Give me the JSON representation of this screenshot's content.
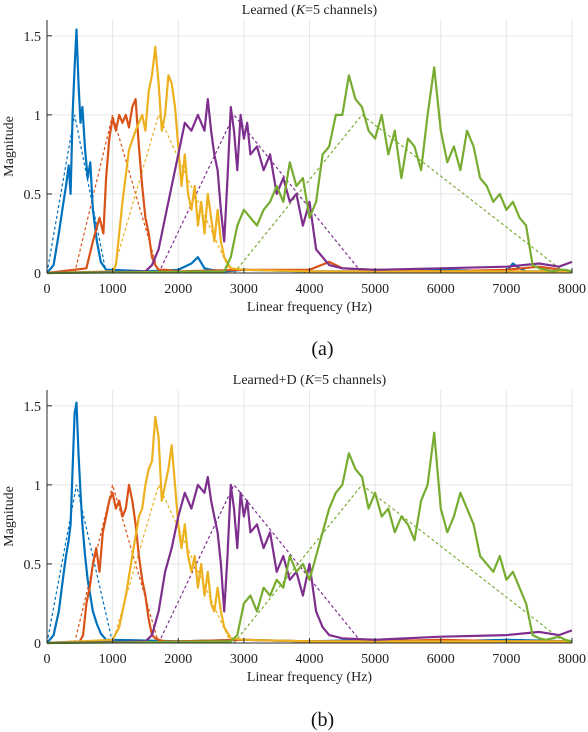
{
  "colors": {
    "ch1": "#0072BD",
    "ch2": "#D95319",
    "ch3": "#EDB120",
    "ch4": "#7E2F8E",
    "ch5": "#77AC30",
    "grid": "#e6e6e6",
    "axis": "#262626"
  },
  "chart_data": [
    {
      "type": "line",
      "title_main": "Learned (",
      "title_k": "K",
      "title_rest": "=5 channels)",
      "caption": "(a)",
      "xlabel": "Linear frequency (Hz)",
      "ylabel": "Magnitude",
      "xlim": [
        0,
        8000
      ],
      "ylim": [
        0,
        1.6
      ],
      "xticks": [
        "0",
        "1000",
        "2000",
        "3000",
        "4000",
        "5000",
        "6000",
        "7000",
        "8000"
      ],
      "yticks": [
        "0",
        "0.5",
        "1",
        "1.5"
      ],
      "grid": true,
      "triangle_filters": [
        {
          "channel": 1,
          "x": [
            0,
            420,
            900
          ],
          "y": [
            0,
            1,
            0
          ]
        },
        {
          "channel": 2,
          "x": [
            420,
            1000,
            1700
          ],
          "y": [
            0,
            1,
            0
          ]
        },
        {
          "channel": 3,
          "x": [
            1000,
            1700,
            2800
          ],
          "y": [
            0,
            1,
            0
          ]
        },
        {
          "channel": 4,
          "x": [
            1700,
            2850,
            4800
          ],
          "y": [
            0,
            1,
            0
          ]
        },
        {
          "channel": 5,
          "x": [
            2850,
            4800,
            7900
          ],
          "y": [
            0,
            1,
            0
          ]
        }
      ],
      "series": [
        {
          "channel": 1,
          "x": [
            0,
            100,
            180,
            240,
            290,
            330,
            360,
            390,
            420,
            450,
            480,
            510,
            540,
            580,
            620,
            660,
            700,
            760,
            820,
            900,
            1000,
            1500,
            2000,
            2200,
            2300,
            2400,
            2500,
            2700,
            3000,
            4000,
            5000,
            6000,
            7000,
            7100,
            7200,
            7300,
            8000
          ],
          "y": [
            0,
            0.05,
            0.25,
            0.42,
            0.55,
            0.68,
            0.5,
            1.0,
            1.3,
            1.54,
            1.2,
            0.95,
            1.05,
            0.78,
            0.6,
            0.7,
            0.4,
            0.2,
            0.07,
            0.02,
            0.02,
            0.01,
            0.02,
            0.06,
            0.1,
            0.03,
            0.02,
            0.01,
            0.02,
            0.01,
            0.01,
            0.02,
            0.01,
            0.06,
            0.03,
            0.01,
            0.01
          ]
        },
        {
          "channel": 2,
          "x": [
            0,
            600,
            700,
            800,
            860,
            900,
            950,
            1000,
            1050,
            1100,
            1150,
            1200,
            1250,
            1300,
            1350,
            1400,
            1450,
            1500,
            1550,
            1600,
            1650,
            1700,
            1800,
            2000,
            3000,
            4000,
            4300,
            4500,
            5000,
            6000,
            7000,
            7500,
            8000
          ],
          "y": [
            0,
            0.03,
            0.2,
            0.35,
            0.25,
            0.6,
            0.85,
            0.98,
            0.9,
            1.0,
            0.95,
            1.0,
            0.92,
            1.05,
            1.1,
            0.8,
            0.55,
            0.35,
            0.25,
            0.1,
            0.05,
            0.02,
            0.02,
            0.01,
            0.02,
            0.02,
            0.07,
            0.03,
            0.02,
            0.01,
            0.02,
            0.04,
            0.01
          ]
        },
        {
          "channel": 3,
          "x": [
            0,
            1000,
            1050,
            1150,
            1250,
            1350,
            1450,
            1500,
            1550,
            1600,
            1650,
            1700,
            1750,
            1800,
            1850,
            1900,
            1950,
            2000,
            2050,
            2100,
            2150,
            2200,
            2250,
            2300,
            2350,
            2400,
            2450,
            2500,
            2550,
            2600,
            2650,
            2700,
            2800,
            3000,
            4000,
            8000
          ],
          "y": [
            0,
            0.01,
            0.05,
            0.45,
            0.78,
            0.9,
            1.0,
            0.9,
            1.15,
            1.25,
            1.43,
            1.2,
            0.9,
            1.0,
            1.25,
            1.2,
            1.05,
            0.8,
            0.55,
            0.75,
            0.5,
            0.4,
            0.55,
            0.3,
            0.45,
            0.25,
            0.5,
            0.35,
            0.2,
            0.4,
            0.2,
            0.1,
            0.03,
            0.02,
            0.01,
            0.01
          ]
        },
        {
          "channel": 4,
          "x": [
            0,
            1500,
            1600,
            1700,
            1800,
            1900,
            2000,
            2100,
            2200,
            2300,
            2400,
            2450,
            2500,
            2550,
            2600,
            2650,
            2700,
            2750,
            2800,
            2850,
            2900,
            2950,
            3000,
            3050,
            3100,
            3200,
            3300,
            3400,
            3500,
            3600,
            3700,
            3800,
            3900,
            4000,
            4100,
            4200,
            4300,
            4500,
            5000,
            6000,
            7000,
            7500,
            7800,
            8000
          ],
          "y": [
            0,
            0.01,
            0.05,
            0.15,
            0.35,
            0.55,
            0.75,
            0.95,
            0.9,
            1.0,
            0.9,
            1.1,
            0.9,
            0.75,
            0.65,
            0.4,
            0.2,
            0.6,
            1.05,
            0.9,
            0.65,
            1.0,
            0.85,
            0.95,
            0.75,
            0.8,
            0.65,
            0.75,
            0.5,
            0.6,
            0.45,
            0.5,
            0.3,
            0.45,
            0.15,
            0.1,
            0.05,
            0.03,
            0.02,
            0.03,
            0.04,
            0.06,
            0.04,
            0.07
          ]
        },
        {
          "channel": 5,
          "x": [
            0,
            2700,
            2800,
            2900,
            3000,
            3100,
            3200,
            3300,
            3400,
            3500,
            3600,
            3700,
            3800,
            3900,
            4000,
            4100,
            4200,
            4300,
            4400,
            4500,
            4600,
            4700,
            4800,
            4900,
            5000,
            5100,
            5200,
            5300,
            5400,
            5500,
            5600,
            5700,
            5800,
            5900,
            6000,
            6100,
            6200,
            6300,
            6400,
            6500,
            6600,
            6700,
            6800,
            6900,
            7000,
            7100,
            7200,
            7300,
            7400,
            7500,
            7600,
            7700,
            7800,
            7900,
            8000
          ],
          "y": [
            0,
            0.01,
            0.1,
            0.3,
            0.4,
            0.35,
            0.3,
            0.4,
            0.45,
            0.55,
            0.45,
            0.7,
            0.55,
            0.6,
            0.35,
            0.45,
            0.75,
            0.8,
            1.0,
            1.0,
            1.25,
            1.1,
            1.05,
            0.9,
            0.85,
            1.0,
            0.75,
            0.9,
            0.6,
            0.85,
            0.8,
            0.65,
            1.0,
            1.3,
            0.9,
            0.7,
            0.8,
            0.65,
            0.9,
            0.8,
            0.6,
            0.55,
            0.45,
            0.5,
            0.4,
            0.45,
            0.35,
            0.3,
            0.05,
            0.03,
            0.02,
            0.01,
            0.02,
            0.02,
            0.01
          ]
        }
      ]
    },
    {
      "type": "line",
      "title_main": "Learned+D (",
      "title_k": "K",
      "title_rest": "=5 channels)",
      "caption": "(b)",
      "xlabel": "Linear frequency (Hz)",
      "ylabel": "Magnitude",
      "xlim": [
        0,
        8000
      ],
      "ylim": [
        0,
        1.6
      ],
      "xticks": [
        "0",
        "1000",
        "2000",
        "3000",
        "4000",
        "5000",
        "6000",
        "7000",
        "8000"
      ],
      "yticks": [
        "0",
        "0.5",
        "1",
        "1.5"
      ],
      "grid": true,
      "triangle_filters": [
        {
          "channel": 1,
          "x": [
            0,
            450,
            1000
          ],
          "y": [
            0,
            1,
            0
          ]
        },
        {
          "channel": 2,
          "x": [
            420,
            1000,
            1700
          ],
          "y": [
            0,
            1,
            0
          ]
        },
        {
          "channel": 3,
          "x": [
            1000,
            1700,
            2800
          ],
          "y": [
            0,
            1,
            0
          ]
        },
        {
          "channel": 4,
          "x": [
            1700,
            2850,
            4800
          ],
          "y": [
            0,
            1,
            0
          ]
        },
        {
          "channel": 5,
          "x": [
            2850,
            4800,
            7900
          ],
          "y": [
            0,
            1,
            0
          ]
        }
      ],
      "series": [
        {
          "channel": 1,
          "x": [
            0,
            100,
            180,
            240,
            290,
            330,
            360,
            390,
            420,
            450,
            480,
            510,
            540,
            580,
            620,
            660,
            700,
            760,
            820,
            900,
            1000,
            2000,
            3000,
            4000,
            5000,
            6000,
            7000,
            8000
          ],
          "y": [
            0,
            0.05,
            0.2,
            0.4,
            0.55,
            0.65,
            0.75,
            1.1,
            1.45,
            1.52,
            1.2,
            0.95,
            0.75,
            0.55,
            0.4,
            0.3,
            0.2,
            0.12,
            0.06,
            0.02,
            0.02,
            0.01,
            0.02,
            0.01,
            0.02,
            0.01,
            0.02,
            0.01
          ]
        },
        {
          "channel": 2,
          "x": [
            0,
            500,
            550,
            600,
            650,
            700,
            750,
            800,
            850,
            900,
            950,
            1000,
            1050,
            1100,
            1150,
            1200,
            1250,
            1300,
            1350,
            1400,
            1450,
            1500,
            1550,
            1600,
            1650,
            1700,
            1800,
            2000,
            3000,
            4000,
            5000,
            6000,
            7000,
            8000
          ],
          "y": [
            0,
            0.01,
            0.05,
            0.25,
            0.35,
            0.5,
            0.6,
            0.45,
            0.7,
            0.8,
            0.9,
            0.95,
            0.85,
            0.9,
            0.8,
            0.85,
            1.0,
            0.9,
            0.75,
            0.55,
            0.4,
            0.3,
            0.15,
            0.05,
            0.03,
            0.02,
            0.01,
            0.01,
            0.02,
            0.01,
            0.01,
            0.02,
            0.01,
            0.01
          ]
        },
        {
          "channel": 3,
          "x": [
            0,
            1000,
            1100,
            1200,
            1300,
            1400,
            1450,
            1500,
            1550,
            1600,
            1650,
            1700,
            1750,
            1800,
            1850,
            1900,
            1950,
            2000,
            2050,
            2100,
            2150,
            2200,
            2250,
            2300,
            2350,
            2400,
            2450,
            2500,
            2550,
            2600,
            2650,
            2700,
            2800,
            3000,
            4000,
            8000
          ],
          "y": [
            0,
            0.02,
            0.1,
            0.3,
            0.55,
            0.8,
            0.85,
            1.0,
            1.1,
            1.15,
            1.43,
            1.3,
            0.9,
            1.0,
            1.1,
            1.25,
            1.0,
            0.75,
            0.6,
            0.75,
            0.55,
            0.45,
            0.55,
            0.35,
            0.5,
            0.3,
            0.45,
            0.25,
            0.2,
            0.35,
            0.2,
            0.1,
            0.03,
            0.02,
            0.01,
            0.01
          ]
        },
        {
          "channel": 4,
          "x": [
            0,
            1500,
            1600,
            1700,
            1800,
            1900,
            2000,
            2100,
            2200,
            2300,
            2400,
            2450,
            2500,
            2550,
            2600,
            2650,
            2700,
            2750,
            2800,
            2850,
            2900,
            2950,
            3000,
            3050,
            3100,
            3200,
            3300,
            3400,
            3500,
            3600,
            3700,
            3800,
            3900,
            4000,
            4100,
            4200,
            4300,
            4500,
            5000,
            6000,
            7000,
            7500,
            7800,
            8000
          ],
          "y": [
            0,
            0.01,
            0.05,
            0.2,
            0.45,
            0.6,
            0.8,
            0.95,
            0.85,
            1.0,
            0.95,
            1.05,
            0.9,
            0.8,
            0.7,
            0.5,
            0.2,
            0.55,
            1.0,
            0.85,
            0.6,
            0.95,
            0.8,
            0.9,
            0.7,
            0.75,
            0.6,
            0.7,
            0.45,
            0.55,
            0.4,
            0.45,
            0.3,
            0.5,
            0.2,
            0.1,
            0.05,
            0.03,
            0.02,
            0.04,
            0.05,
            0.07,
            0.05,
            0.08
          ]
        },
        {
          "channel": 5,
          "x": [
            0,
            2800,
            2900,
            3000,
            3100,
            3200,
            3300,
            3400,
            3500,
            3600,
            3700,
            3800,
            3900,
            4000,
            4100,
            4200,
            4300,
            4400,
            4500,
            4600,
            4700,
            4800,
            4900,
            5000,
            5100,
            5200,
            5300,
            5400,
            5500,
            5600,
            5700,
            5800,
            5900,
            6000,
            6100,
            6200,
            6300,
            6400,
            6500,
            6600,
            6700,
            6800,
            6900,
            7000,
            7100,
            7200,
            7300,
            7400,
            7500,
            7600,
            7700,
            7800,
            7900,
            8000
          ],
          "y": [
            0,
            0.01,
            0.05,
            0.25,
            0.3,
            0.2,
            0.35,
            0.3,
            0.4,
            0.35,
            0.55,
            0.45,
            0.5,
            0.4,
            0.55,
            0.7,
            0.85,
            0.95,
            1.0,
            1.2,
            1.1,
            1.05,
            0.85,
            0.95,
            0.8,
            0.85,
            0.7,
            0.8,
            0.75,
            0.65,
            0.9,
            1.0,
            1.33,
            0.85,
            0.7,
            0.8,
            0.95,
            0.85,
            0.75,
            0.55,
            0.5,
            0.45,
            0.55,
            0.4,
            0.45,
            0.35,
            0.25,
            0.05,
            0.03,
            0.02,
            0.03,
            0.04,
            0.02,
            0.01
          ]
        }
      ]
    }
  ]
}
